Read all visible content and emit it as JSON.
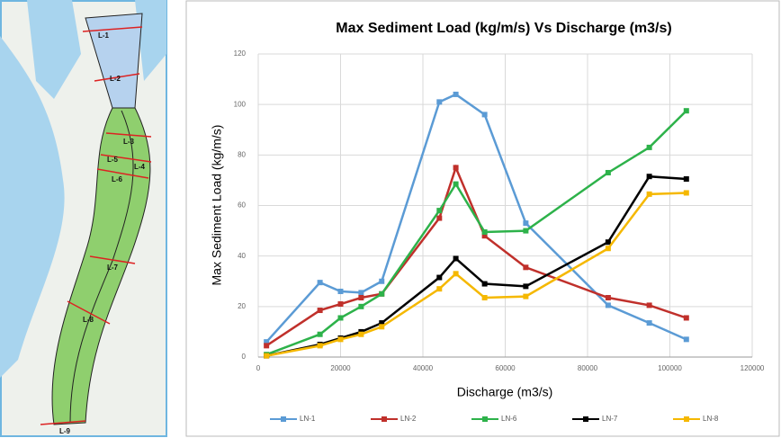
{
  "map": {
    "labels": [
      "L-1",
      "L-2",
      "L-3",
      "L-5",
      "L-4",
      "L-6",
      "L-7",
      "L-8",
      "L-9"
    ]
  },
  "chart_data": {
    "type": "line",
    "title": "Max Sediment Load (kg/m/s) Vs Discharge (m3/s)",
    "x_label": "Discharge (m3/s)",
    "y_label": "Max Sediment Load (kg/m/s)",
    "x": [
      2000,
      15000,
      20000,
      25000,
      30000,
      44000,
      48000,
      55000,
      65000,
      85000,
      95000,
      104000
    ],
    "series": [
      {
        "name": "LN-1",
        "color": "#5b9bd5",
        "values": [
          6,
          29.5,
          26,
          25.5,
          30,
          101,
          104,
          96,
          53,
          20.5,
          13.5,
          7
        ]
      },
      {
        "name": "LN-2",
        "color": "#c0302b",
        "values": [
          4.5,
          18.5,
          21,
          23.5,
          25,
          55,
          75,
          48,
          35.5,
          23.5,
          20.5,
          15.5
        ]
      },
      {
        "name": "LN-6",
        "color": "#2db24a",
        "values": [
          1,
          9,
          15.5,
          20,
          25,
          58,
          68.5,
          49.5,
          50,
          73,
          83,
          97.5
        ]
      },
      {
        "name": "LN-7",
        "color": "#000000",
        "values": [
          0.5,
          5,
          7.5,
          10,
          13.5,
          31.5,
          39,
          29,
          28,
          45.5,
          71.5,
          70.5
        ]
      },
      {
        "name": "LN-8",
        "color": "#f5b800",
        "values": [
          0.5,
          4.5,
          7,
          9,
          12,
          27,
          33,
          23.5,
          24,
          43,
          64.5,
          65
        ]
      }
    ],
    "xlim": [
      0,
      120000
    ],
    "xticks": [
      0,
      20000,
      40000,
      60000,
      80000,
      100000,
      120000
    ],
    "ylim": [
      0,
      120
    ],
    "yticks": [
      0,
      20,
      40,
      60,
      80,
      100,
      120
    ],
    "grid": true,
    "legend": "bottom"
  }
}
